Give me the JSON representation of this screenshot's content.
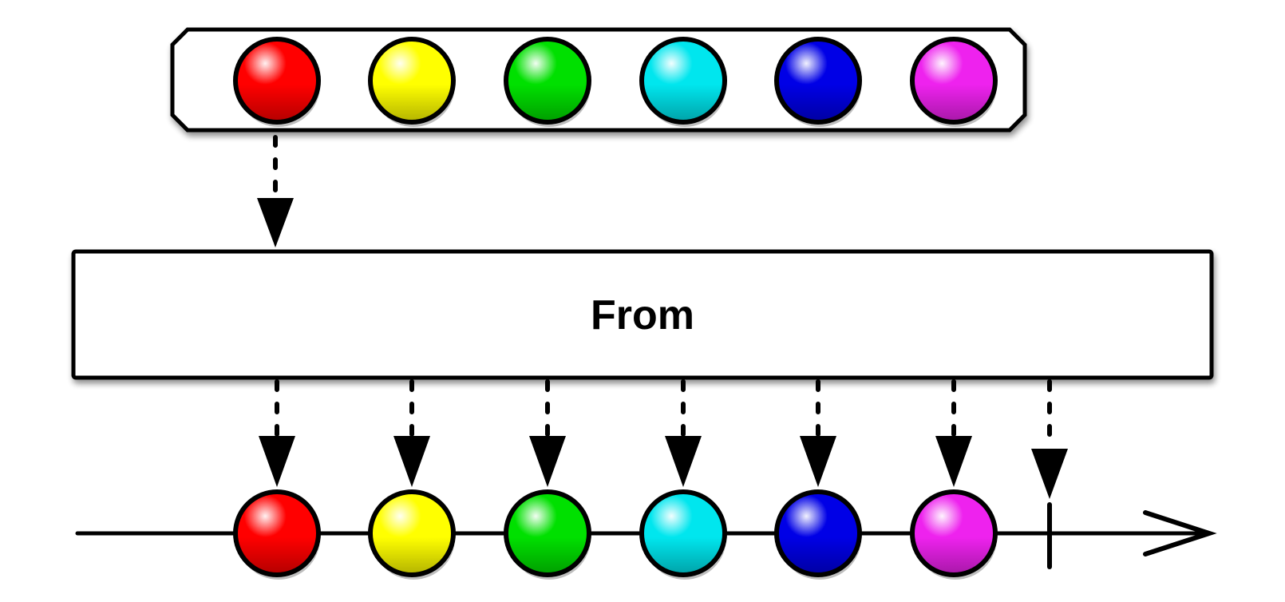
{
  "diagram": {
    "type": "marble-diagram",
    "operator_label": "From",
    "source_items": [
      {
        "name": "red",
        "color": "#ff0000"
      },
      {
        "name": "yellow",
        "color": "#ffff00"
      },
      {
        "name": "green",
        "color": "#00e000"
      },
      {
        "name": "cyan",
        "color": "#00e6ee"
      },
      {
        "name": "blue",
        "color": "#0000e6"
      },
      {
        "name": "magenta",
        "color": "#ee22ee"
      }
    ],
    "output_items": [
      {
        "name": "red",
        "color": "#ff0000"
      },
      {
        "name": "yellow",
        "color": "#ffff00"
      },
      {
        "name": "green",
        "color": "#00e000"
      },
      {
        "name": "cyan",
        "color": "#00e6ee"
      },
      {
        "name": "blue",
        "color": "#0000e6"
      },
      {
        "name": "magenta",
        "color": "#ee22ee"
      }
    ],
    "completion_marker": true,
    "timeline_arrow": true
  }
}
